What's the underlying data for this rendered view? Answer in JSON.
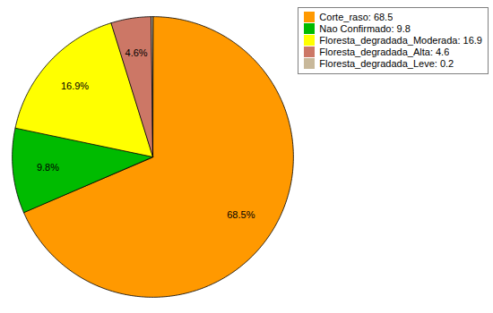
{
  "chart_data": {
    "type": "pie",
    "categories": [
      "Corte_raso: 68.5",
      "Nao Confirmado: 9.8",
      "Floresta_degradada_Moderada: 16.9",
      "Floresta_degradada_Alta: 4.6",
      "Floresta_degradada_Leve: 0.2"
    ],
    "values": [
      68.5,
      9.8,
      16.9,
      4.6,
      0.2
    ],
    "colors": [
      "#FF9900",
      "#00BB00",
      "#FFFF00",
      "#CC7766",
      "#C8B89A"
    ],
    "data_labels": true,
    "value_labels": [
      "68.5%",
      "9.8%",
      "16.9%",
      "4.6%",
      null
    ],
    "legend": "upper right"
  }
}
